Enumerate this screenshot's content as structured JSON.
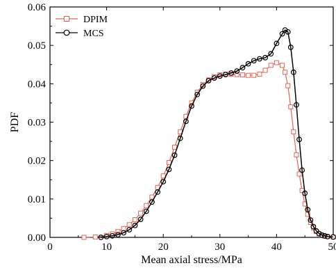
{
  "chart_data": {
    "type": "line",
    "title": "",
    "xlabel": "Mean axial stress/MPa",
    "ylabel": "PDF",
    "xlim": [
      0,
      50
    ],
    "ylim": [
      0,
      0.06
    ],
    "x_ticks": [
      "0",
      "10",
      "20",
      "30",
      "40",
      "50"
    ],
    "y_ticks": [
      "0.00",
      "0.01",
      "0.02",
      "0.03",
      "0.04",
      "0.05",
      "0.06"
    ],
    "legend_position": "top-left",
    "grid": false,
    "series": [
      {
        "name": "DPIM",
        "color": "#e8614f",
        "marker": "square",
        "x": [
          6,
          8,
          10,
          11,
          12,
          13,
          14,
          15,
          16,
          17,
          18,
          19,
          20,
          21,
          22,
          23,
          24,
          25,
          26,
          27,
          28,
          29,
          30,
          31,
          32,
          33,
          34,
          35,
          36,
          37,
          38,
          39,
          40,
          41,
          41.5,
          42,
          42.5,
          43,
          43.5,
          44,
          44.5,
          45,
          45.5,
          46,
          46.5,
          47,
          47.5,
          48,
          48.5,
          49,
          50
        ],
        "y": [
          0.0,
          0.0001,
          0.0005,
          0.0009,
          0.0015,
          0.0023,
          0.0033,
          0.0046,
          0.0063,
          0.0083,
          0.0105,
          0.013,
          0.016,
          0.0195,
          0.0235,
          0.0275,
          0.0315,
          0.035,
          0.0378,
          0.0398,
          0.041,
          0.0418,
          0.0423,
          0.0425,
          0.0425,
          0.0424,
          0.0423,
          0.0422,
          0.0422,
          0.0425,
          0.0435,
          0.0448,
          0.0455,
          0.0448,
          0.043,
          0.0395,
          0.034,
          0.0275,
          0.0215,
          0.0165,
          0.0122,
          0.0087,
          0.006,
          0.0039,
          0.0025,
          0.0015,
          0.0009,
          0.0005,
          0.0003,
          0.0002,
          0.0001
        ]
      },
      {
        "name": "MCS",
        "color": "#000000",
        "marker": "circle",
        "x": [
          9,
          10,
          11,
          12,
          13,
          14,
          15,
          16,
          17,
          18,
          19,
          20,
          21,
          22,
          23,
          24,
          25,
          26,
          27,
          28,
          29,
          30,
          31,
          32,
          33,
          34,
          35,
          36,
          37,
          38,
          39,
          40,
          41,
          41.5,
          42,
          42.5,
          43,
          43.5,
          44,
          44.5,
          45,
          45.5,
          46,
          46.5,
          47,
          47.5,
          48,
          48.5,
          49,
          50
        ],
        "y": [
          0.0,
          0.0002,
          0.0004,
          0.0007,
          0.0012,
          0.002,
          0.0031,
          0.0047,
          0.0068,
          0.0092,
          0.0118,
          0.0145,
          0.0177,
          0.0214,
          0.0258,
          0.0302,
          0.0342,
          0.0372,
          0.0394,
          0.0408,
          0.0415,
          0.042,
          0.0424,
          0.0428,
          0.0433,
          0.0442,
          0.0452,
          0.046,
          0.0465,
          0.0468,
          0.0478,
          0.0505,
          0.053,
          0.054,
          0.0535,
          0.0495,
          0.043,
          0.0345,
          0.0255,
          0.0175,
          0.0115,
          0.0072,
          0.0045,
          0.0028,
          0.0017,
          0.001,
          0.0006,
          0.0004,
          0.0002,
          0.0001
        ]
      }
    ]
  }
}
